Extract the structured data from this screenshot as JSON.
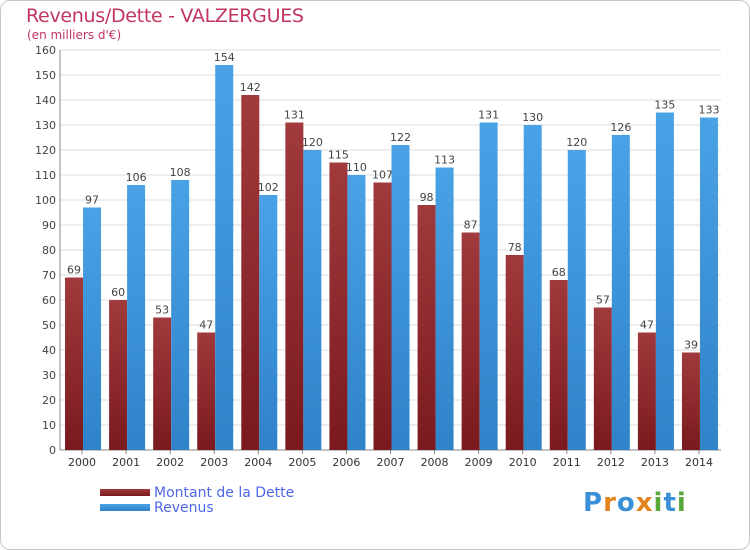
{
  "title": "Revenus/Dette - VALZERGUES",
  "subtitle": "(en milliers d'€)",
  "colors": {
    "dette": "#7a1a1e",
    "dette_light": "#a03a3c",
    "revenus": "#4aa2e6",
    "revenus_dark": "#2f83c8",
    "title": "#c0365e",
    "legend_text": "#4f66e6",
    "grid": "#dcdcdc"
  },
  "legend": {
    "dette_label": "Montant de la Dette",
    "revenus_label": "Revenus"
  },
  "logo": {
    "text": "Proxiti",
    "letters": [
      "P",
      "r",
      "o",
      "x",
      "i",
      "t",
      "i"
    ],
    "letter_colors": [
      "#3a8fd6",
      "#e2841b",
      "#3a8fd6",
      "#e2841b",
      "#5aa83a",
      "#3a8fd6",
      "#5aa83a"
    ]
  },
  "chart_data": {
    "type": "bar",
    "categories": [
      "2000",
      "2001",
      "2002",
      "2003",
      "2004",
      "2005",
      "2006",
      "2007",
      "2008",
      "2009",
      "2010",
      "2011",
      "2012",
      "2013",
      "2014"
    ],
    "series": [
      {
        "name": "Montant de la Dette",
        "values": [
          69,
          60,
          53,
          47,
          142,
          131,
          115,
          107,
          98,
          87,
          78,
          68,
          57,
          47,
          39
        ]
      },
      {
        "name": "Revenus",
        "values": [
          97,
          106,
          108,
          154,
          102,
          120,
          110,
          122,
          113,
          131,
          130,
          120,
          126,
          135,
          133
        ]
      }
    ],
    "ylim": [
      0,
      160
    ],
    "yticks": [
      0,
      10,
      20,
      30,
      40,
      50,
      60,
      70,
      80,
      90,
      100,
      110,
      120,
      130,
      140,
      150,
      160
    ],
    "grid": true,
    "legend_position": "bottom-left"
  }
}
